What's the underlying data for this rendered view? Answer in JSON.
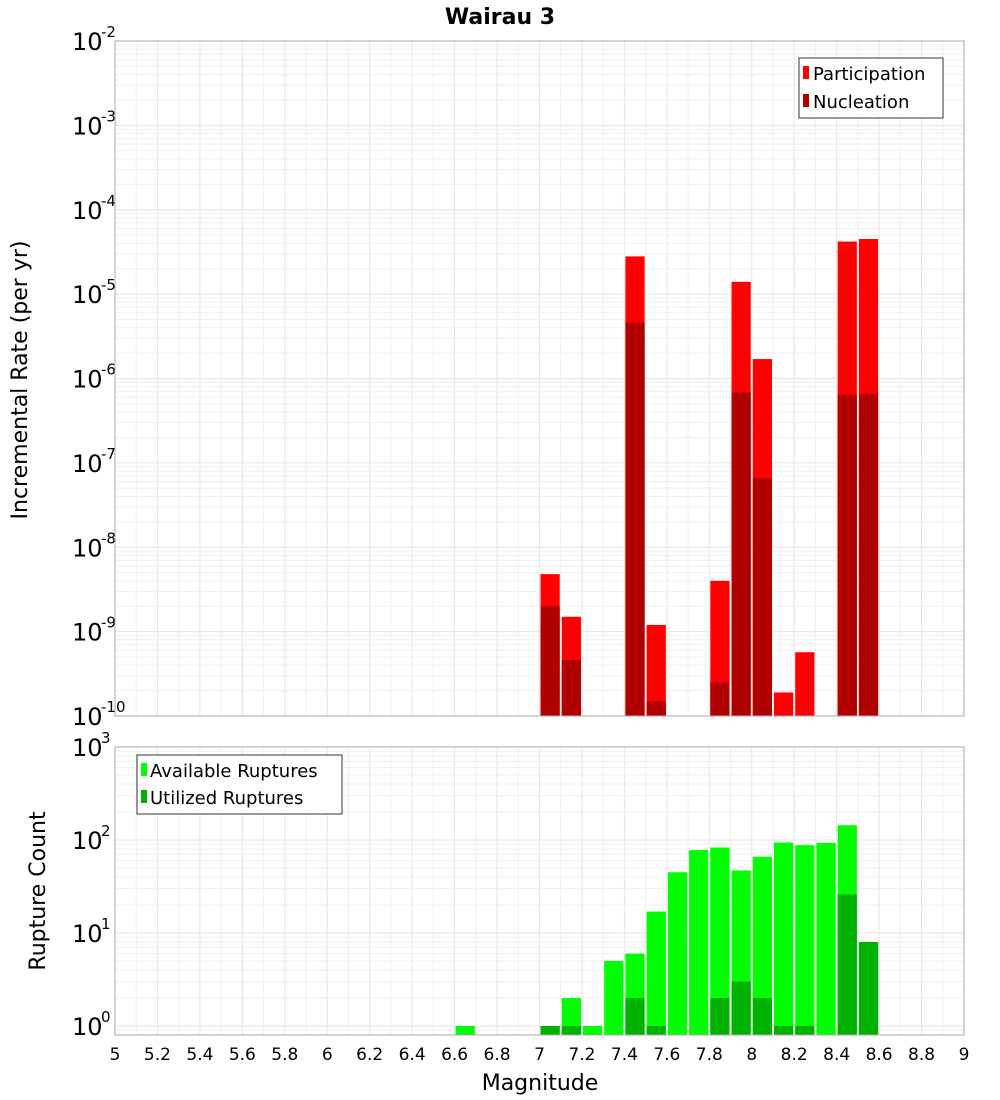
{
  "chart_data": [
    {
      "type": "bar",
      "title": "Wairau 3",
      "xlabel": "Magnitude",
      "ylabel": "Incremental Rate (per yr)",
      "y_scale": "log",
      "ylim": [
        1e-10,
        0.01
      ],
      "xlim": [
        5,
        9
      ],
      "y_ticks": [
        {
          "base": "10",
          "exp": "-10",
          "value": 1e-10
        },
        {
          "base": "10",
          "exp": "-9",
          "value": 1e-09
        },
        {
          "base": "10",
          "exp": "-8",
          "value": 1e-08
        },
        {
          "base": "10",
          "exp": "-7",
          "value": 1e-07
        },
        {
          "base": "10",
          "exp": "-6",
          "value": 1e-06
        },
        {
          "base": "10",
          "exp": "-5",
          "value": 1e-05
        },
        {
          "base": "10",
          "exp": "-4",
          "value": 0.0001
        },
        {
          "base": "10",
          "exp": "-3",
          "value": 0.001
        },
        {
          "base": "10",
          "exp": "-2",
          "value": 0.01
        }
      ],
      "legend_position": "top-right",
      "grid": true,
      "series": [
        {
          "name": "Participation",
          "color": "#ff0000",
          "points": [
            {
              "x": 7.05,
              "y": 4.8e-09
            },
            {
              "x": 7.15,
              "y": 1.5e-09
            },
            {
              "x": 7.45,
              "y": 2.8e-05
            },
            {
              "x": 7.55,
              "y": 1.2e-09
            },
            {
              "x": 7.85,
              "y": 4e-09
            },
            {
              "x": 7.95,
              "y": 1.4e-05
            },
            {
              "x": 8.05,
              "y": 1.7e-06
            },
            {
              "x": 8.15,
              "y": 1.9e-10
            },
            {
              "x": 8.25,
              "y": 5.7e-10
            },
            {
              "x": 8.45,
              "y": 4.2e-05
            },
            {
              "x": 8.55,
              "y": 4.5e-05
            }
          ]
        },
        {
          "name": "Nucleation",
          "color": "#b00000",
          "points": [
            {
              "x": 7.05,
              "y": 2e-09
            },
            {
              "x": 7.15,
              "y": 4.6e-10
            },
            {
              "x": 7.45,
              "y": 4.6e-06
            },
            {
              "x": 7.55,
              "y": 1.5e-10
            },
            {
              "x": 7.85,
              "y": 2.5e-10
            },
            {
              "x": 7.95,
              "y": 6.8e-07
            },
            {
              "x": 8.05,
              "y": 6.6e-08
            },
            {
              "x": 8.45,
              "y": 6.4e-07
            },
            {
              "x": 8.55,
              "y": 6.6e-07
            }
          ]
        }
      ]
    },
    {
      "type": "bar",
      "xlabel": "Magnitude",
      "ylabel": "Rupture Count",
      "y_scale": "log",
      "ylim": [
        0.8,
        1000
      ],
      "xlim": [
        5,
        9
      ],
      "x_ticks": [
        "5",
        "5.2",
        "5.4",
        "5.6",
        "5.8",
        "6",
        "6.2",
        "6.4",
        "6.6",
        "6.8",
        "7",
        "7.2",
        "7.4",
        "7.6",
        "7.8",
        "8",
        "8.2",
        "8.4",
        "8.6",
        "8.8",
        "9"
      ],
      "y_ticks": [
        {
          "base": "10",
          "exp": "0",
          "value": 1
        },
        {
          "base": "10",
          "exp": "1",
          "value": 10
        },
        {
          "base": "10",
          "exp": "2",
          "value": 100
        },
        {
          "base": "10",
          "exp": "3",
          "value": 1000
        }
      ],
      "legend_position": "top-left",
      "grid": true,
      "series": [
        {
          "name": "Available Ruptures",
          "color": "#00ff00",
          "points": [
            {
              "x": 6.65,
              "y": 1
            },
            {
              "x": 7.05,
              "y": 1
            },
            {
              "x": 7.15,
              "y": 2
            },
            {
              "x": 7.25,
              "y": 1
            },
            {
              "x": 7.35,
              "y": 5
            },
            {
              "x": 7.45,
              "y": 6
            },
            {
              "x": 7.55,
              "y": 17
            },
            {
              "x": 7.65,
              "y": 45
            },
            {
              "x": 7.75,
              "y": 78
            },
            {
              "x": 7.85,
              "y": 83
            },
            {
              "x": 7.95,
              "y": 47
            },
            {
              "x": 8.05,
              "y": 66
            },
            {
              "x": 8.15,
              "y": 94
            },
            {
              "x": 8.25,
              "y": 88
            },
            {
              "x": 8.35,
              "y": 93
            },
            {
              "x": 8.45,
              "y": 144
            },
            {
              "x": 8.55,
              "y": 8
            }
          ]
        },
        {
          "name": "Utilized Ruptures",
          "color": "#00b200",
          "points": [
            {
              "x": 7.05,
              "y": 1
            },
            {
              "x": 7.15,
              "y": 1
            },
            {
              "x": 7.45,
              "y": 2
            },
            {
              "x": 7.55,
              "y": 1
            },
            {
              "x": 7.85,
              "y": 2
            },
            {
              "x": 7.95,
              "y": 3
            },
            {
              "x": 8.05,
              "y": 2
            },
            {
              "x": 8.15,
              "y": 1
            },
            {
              "x": 8.25,
              "y": 1
            },
            {
              "x": 8.45,
              "y": 26
            },
            {
              "x": 8.55,
              "y": 8
            }
          ]
        }
      ]
    }
  ]
}
